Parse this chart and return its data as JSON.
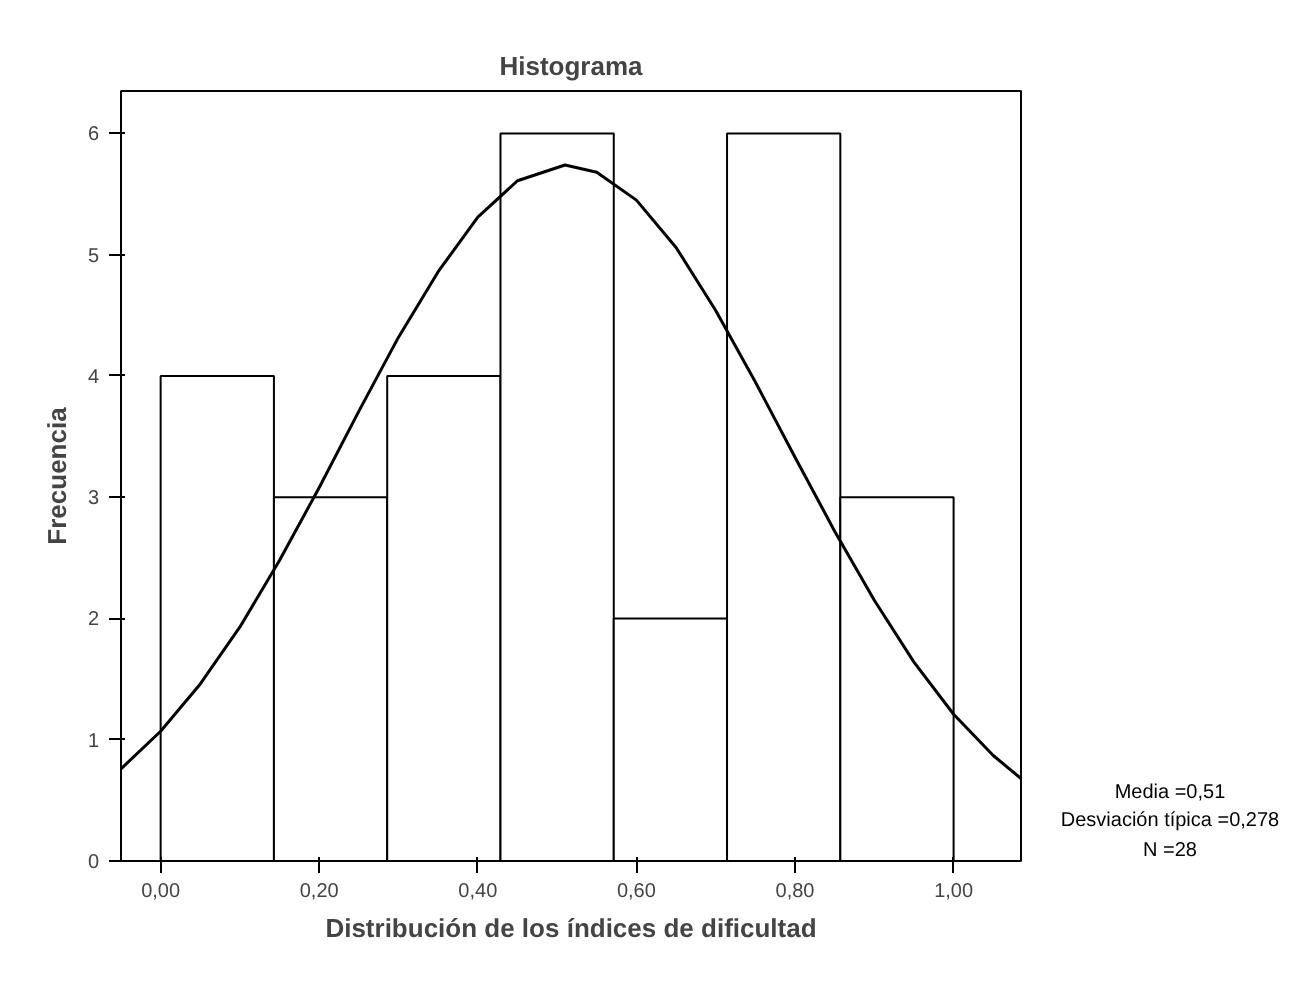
{
  "chart_data": {
    "type": "histogram",
    "title": "Histograma",
    "xlabel": "Distribución de los índices de dificultad",
    "ylabel": "Frecuencia",
    "bins": [
      0,
      0.142857,
      0.285714,
      0.428571,
      0.571429,
      0.714286,
      0.857143,
      1
    ],
    "values": [
      4,
      3,
      4,
      6,
      2,
      6,
      3
    ],
    "color": "#ffffff",
    "series": [
      {
        "type": "line",
        "color": "#000000",
        "x": [
          -0.05,
          0,
          0.05,
          0.1,
          0.15,
          0.2,
          0.25,
          0.3,
          0.35,
          0.4,
          0.45,
          0.51,
          0.55,
          0.6,
          0.65,
          0.7,
          0.75,
          0.8,
          0.85,
          0.9,
          0.95,
          1,
          1.05,
          1.085
        ],
        "values": [
          0.76,
          1.07,
          1.46,
          1.93,
          2.48,
          3.08,
          3.71,
          4.32,
          4.86,
          5.31,
          5.61,
          5.74,
          5.68,
          5.45,
          5.06,
          4.54,
          3.95,
          3.33,
          2.72,
          2.15,
          1.64,
          1.21,
          0.87,
          0.68
        ]
      }
    ],
    "xlim": [
      -0.05,
      1.085
    ],
    "ylim": [
      0,
      6.35
    ],
    "xticks": [
      {
        "value": 0,
        "label": "0,00"
      },
      {
        "value": 0.2,
        "label": "0,20"
      },
      {
        "value": 0.4,
        "label": "0,40"
      },
      {
        "value": 0.6,
        "label": "0,60"
      },
      {
        "value": 0.8,
        "label": "0,80"
      },
      {
        "value": 1,
        "label": "1,00"
      }
    ],
    "yticks": [
      0,
      1,
      2,
      3,
      4,
      5,
      6
    ],
    "annotations": [
      "Media =0,51",
      "Desviación típica =0,278",
      "N =28"
    ]
  }
}
